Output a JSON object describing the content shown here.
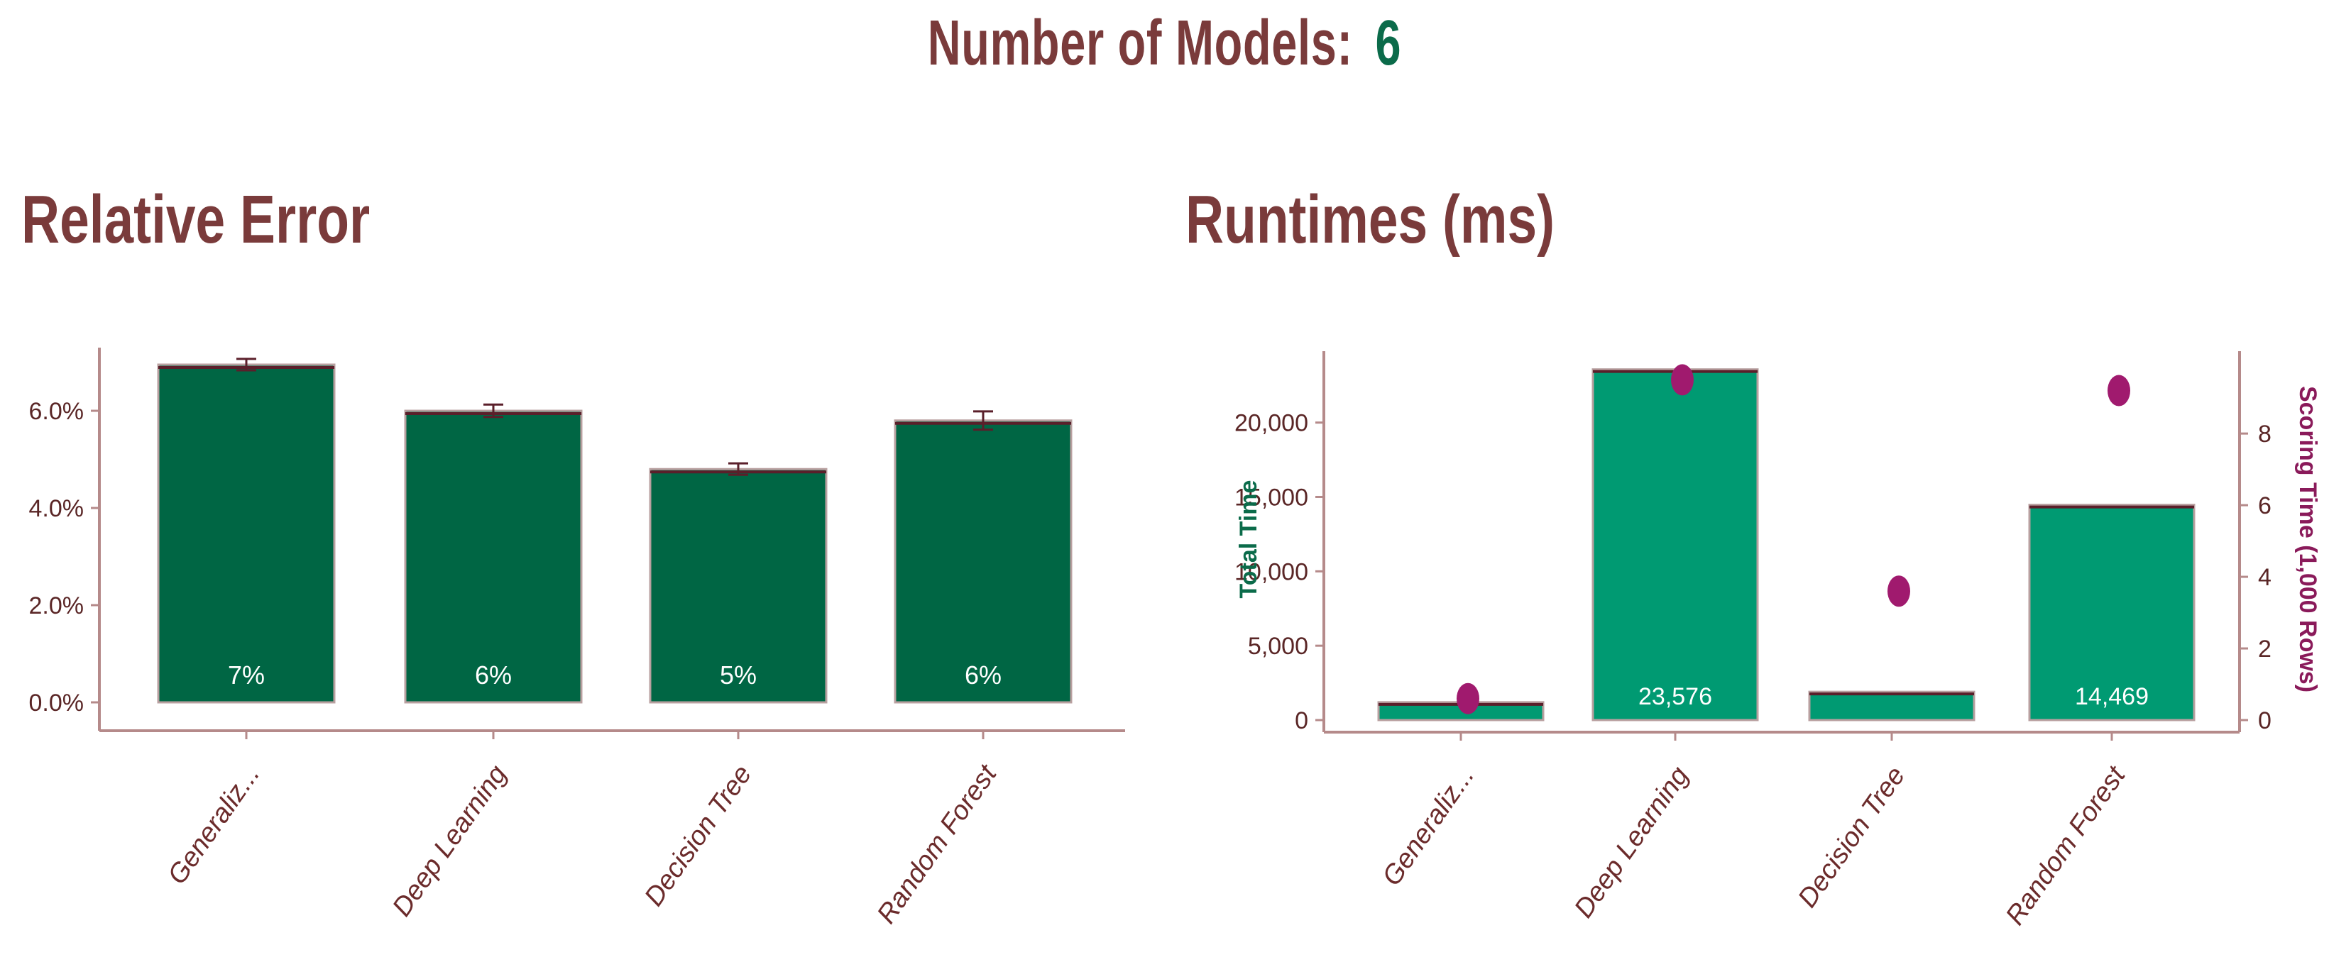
{
  "header": {
    "label": "Number of Models:",
    "count": "6"
  },
  "colors": {
    "title": "#7a3b3b",
    "count": "#0b6b4a",
    "bar_error": "#006644",
    "bar_runtime": "#009a72",
    "scoring_point": "#a01a6e",
    "axis": "#b58a8a"
  },
  "chart_data": [
    {
      "type": "bar",
      "title": "Relative Error",
      "categories": [
        "Generaliz...",
        "Deep Learning",
        "Decision Tree",
        "Random Forest"
      ],
      "values": [
        6.95,
        6.0,
        4.8,
        5.8
      ],
      "error": [
        0.03,
        0.04,
        0.03,
        0.1
      ],
      "labels": [
        "7%",
        "6%",
        "5%",
        "6%"
      ],
      "yticks": [
        "0.0%",
        "2.0%",
        "4.0%",
        "6.0%"
      ],
      "ylim": [
        0,
        7.3
      ],
      "grid": false
    },
    {
      "type": "bar",
      "title": "Runtimes (ms)",
      "categories": [
        "Generaliz...",
        "Deep Learning",
        "Decision Tree",
        "Random Forest"
      ],
      "values": [
        1200,
        23576,
        1900,
        14469
      ],
      "labels": [
        "",
        "23,576",
        "",
        "14,469"
      ],
      "ylabel": "Total Time",
      "yticks": [
        "0",
        "5,000",
        "10,000",
        "15,000",
        "20,000"
      ],
      "ylim": [
        0,
        24800
      ],
      "secondary": {
        "type": "scatter",
        "ylabel": "Scoring Time (1,000 Rows)",
        "values": [
          0.6,
          9.5,
          3.6,
          9.2
        ],
        "yticks": [
          "0",
          "2",
          "4",
          "6",
          "8"
        ],
        "ylim": [
          0,
          10.3
        ]
      },
      "grid": false
    }
  ]
}
